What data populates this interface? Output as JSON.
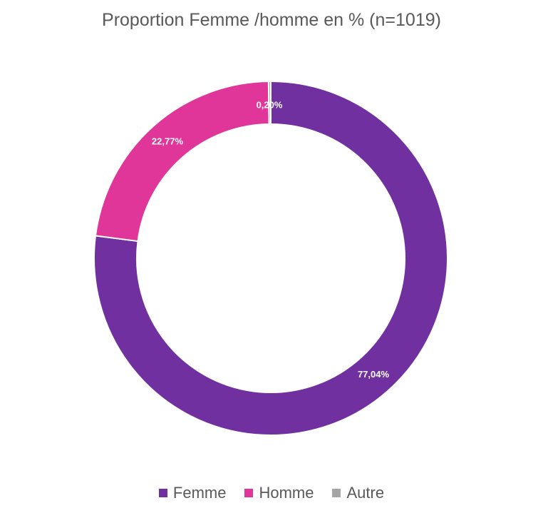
{
  "chart_data": {
    "type": "pie",
    "variant": "donut",
    "title": "Proportion Femme /homme en % (n=1019)",
    "categories": [
      "Femme",
      "Homme",
      "Autre"
    ],
    "values": [
      77.04,
      22.77,
      0.2
    ],
    "labels": [
      "77,04%",
      "22,77%",
      "0,20%"
    ],
    "colors": [
      "#7030A0",
      "#E0369A",
      "#A5A5A5"
    ],
    "legend_position": "bottom"
  },
  "legend": {
    "items": [
      {
        "label": "Femme",
        "color": "#7030A0"
      },
      {
        "label": "Homme",
        "color": "#E0369A"
      },
      {
        "label": "Autre",
        "color": "#A5A5A5"
      }
    ]
  }
}
